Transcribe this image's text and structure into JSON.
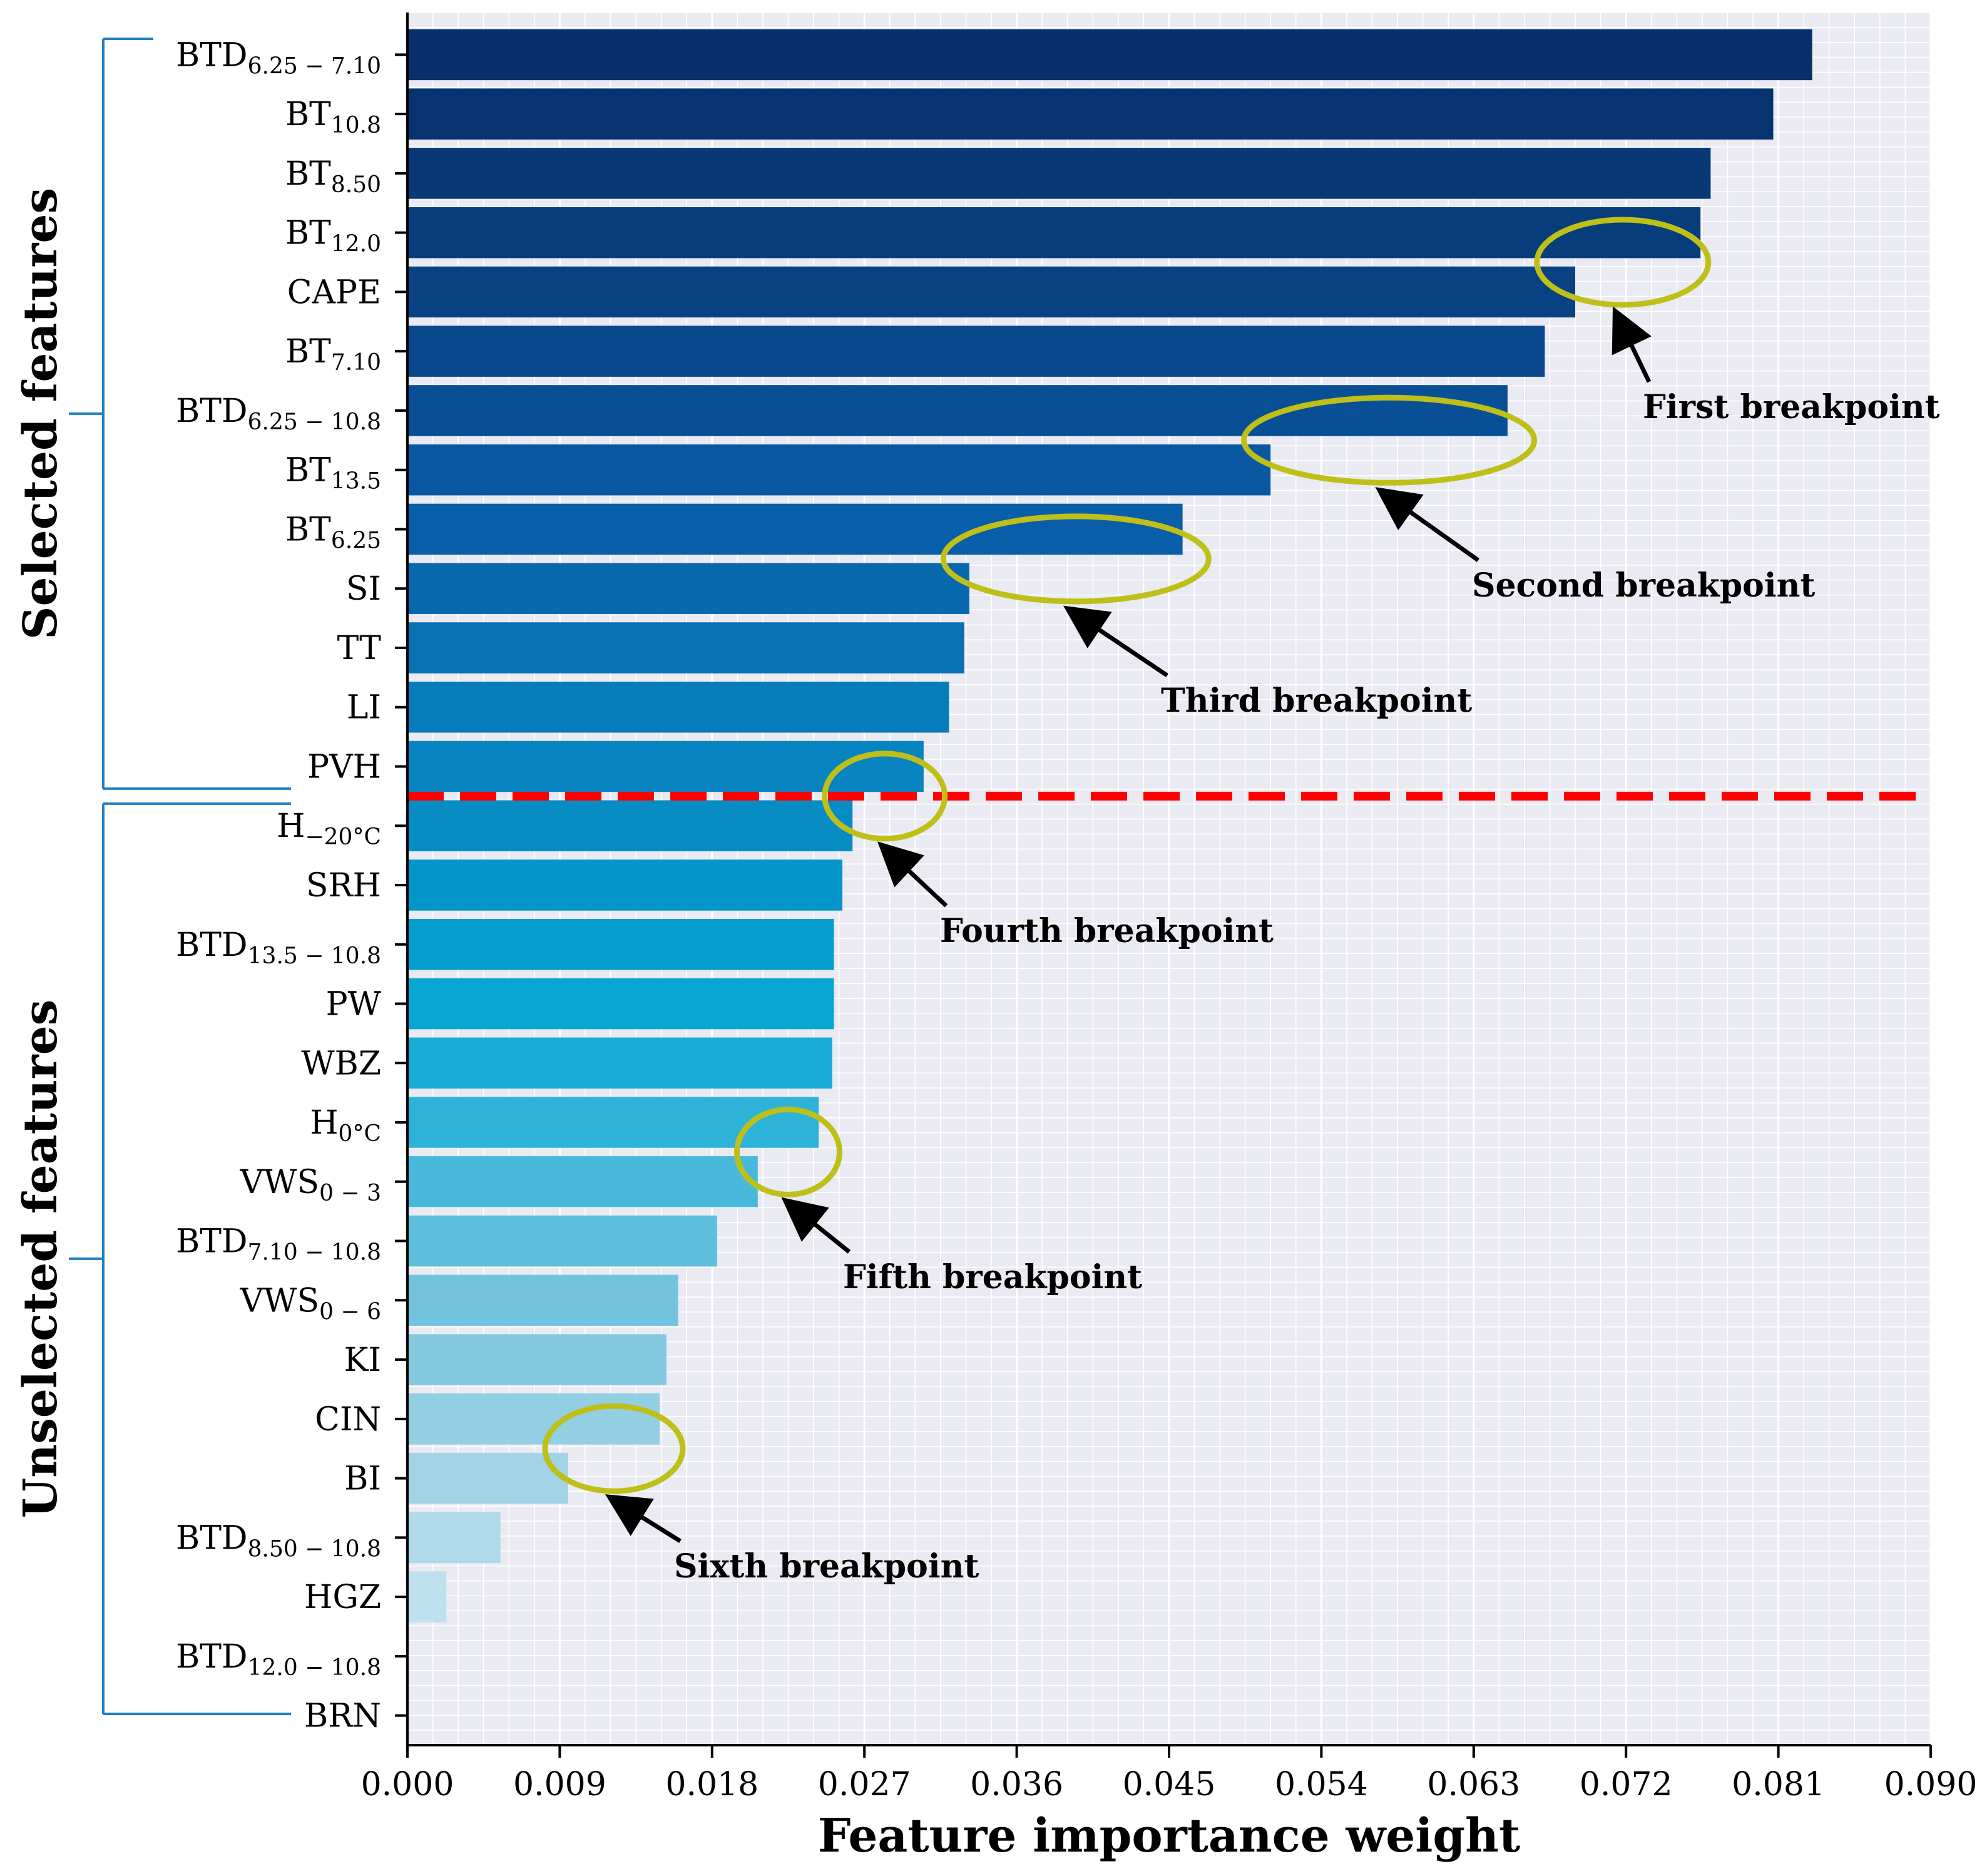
{
  "chart_data": {
    "type": "bar",
    "orientation": "horizontal",
    "xlabel": "Feature importance weight",
    "xlim": [
      0,
      0.09
    ],
    "xticks": [
      "0.000",
      "0.009",
      "0.018",
      "0.027",
      "0.036",
      "0.045",
      "0.054",
      "0.063",
      "0.072",
      "0.081",
      "0.090"
    ],
    "grid": true,
    "categories": [
      {
        "base": "BTD",
        "sub": "6.25 − 7.10",
        "value": 0.083,
        "color": "#08306b"
      },
      {
        "base": "BT",
        "sub": "10.8",
        "value": 0.0807,
        "color": "#083370"
      },
      {
        "base": "BT",
        "sub": "8.50",
        "value": 0.077,
        "color": "#083875"
      },
      {
        "base": "BT",
        "sub": "12.0",
        "value": 0.0764,
        "color": "#083d7c"
      },
      {
        "base": "CAPE",
        "sub": "",
        "value": 0.069,
        "color": "#084283"
      },
      {
        "base": "BT",
        "sub": "7.10",
        "value": 0.0672,
        "color": "#08488c"
      },
      {
        "base": "BTD",
        "sub": "6.25 − 10.8",
        "value": 0.065,
        "color": "#084f96"
      },
      {
        "base": "BT",
        "sub": "13.5",
        "value": 0.051,
        "color": "#0857a0"
      },
      {
        "base": "BT",
        "sub": "6.25",
        "value": 0.0458,
        "color": "#085ea8"
      },
      {
        "base": "SI",
        "sub": "",
        "value": 0.0332,
        "color": "#0868ae"
      },
      {
        "base": "TT",
        "sub": "",
        "value": 0.0329,
        "color": "#0872b4"
      },
      {
        "base": "LI",
        "sub": "",
        "value": 0.032,
        "color": "#087bba"
      },
      {
        "base": "PVH",
        "sub": "",
        "value": 0.0305,
        "color": "#0884c0"
      },
      {
        "base": "H",
        "sub": "−20°C",
        "value": 0.0263,
        "color": "#078dc4"
      },
      {
        "base": "SRH",
        "sub": "",
        "value": 0.0257,
        "color": "#0596c9"
      },
      {
        "base": "BTD",
        "sub": "13.5 − 10.8",
        "value": 0.0252,
        "color": "#049ece"
      },
      {
        "base": "PW",
        "sub": "",
        "value": 0.0252,
        "color": "#0aa6d3"
      },
      {
        "base": "WBZ",
        "sub": "",
        "value": 0.0251,
        "color": "#1aacd6"
      },
      {
        "base": "H",
        "sub": "0°C",
        "value": 0.0243,
        "color": "#2eb3d8"
      },
      {
        "base": "VWS",
        "sub": "0 − 3",
        "value": 0.0207,
        "color": "#48b9da"
      },
      {
        "base": "BTD",
        "sub": "7.10 − 10.8",
        "value": 0.0183,
        "color": "#5fbedc"
      },
      {
        "base": "VWS",
        "sub": "0 − 6",
        "value": 0.016,
        "color": "#74c3de"
      },
      {
        "base": "KI",
        "sub": "",
        "value": 0.0153,
        "color": "#85c9e0"
      },
      {
        "base": "CIN",
        "sub": "",
        "value": 0.0149,
        "color": "#93cfe3"
      },
      {
        "base": "BI",
        "sub": "",
        "value": 0.0095,
        "color": "#a2d4e6"
      },
      {
        "base": "BTD",
        "sub": "8.50 − 10.8",
        "value": 0.0055,
        "color": "#b0daea"
      },
      {
        "base": "HGZ",
        "sub": "",
        "value": 0.0023,
        "color": "#bfe0ee"
      },
      {
        "base": "BTD",
        "sub": "12.0 − 10.8",
        "value": 0.0,
        "color": "#c9e6f1"
      },
      {
        "base": "BRN",
        "sub": "",
        "value": 0.0,
        "color": "#d4ebf4"
      }
    ],
    "groups": [
      {
        "label": "Selected features",
        "from": 0,
        "to": 12
      },
      {
        "label": "Unselected features",
        "from": 13,
        "to": 28
      }
    ],
    "cutoff_after_index": 12,
    "annotations": [
      {
        "text": "First breakpoint",
        "circle_x": 0.0718,
        "circle_row": 3.5
      },
      {
        "text": "Second breakpoint",
        "circle_x": 0.058,
        "circle_row": 6.5
      },
      {
        "text": "Third breakpoint",
        "circle_x": 0.0395,
        "circle_row": 8.5
      },
      {
        "text": "Fourth breakpoint",
        "circle_x": 0.0282,
        "circle_row": 12.5
      },
      {
        "text": "Fifth breakpoint",
        "circle_x": 0.0225,
        "circle_row": 18.5
      },
      {
        "text": "Sixth breakpoint",
        "circle_x": 0.0122,
        "circle_row": 23.5
      }
    ],
    "colors": {
      "background": "#eaeaf2",
      "grid": "#ffffff",
      "cutoff_line": "#ff0000",
      "circle": "#bfbf1a",
      "bracket": "#1f7fc3"
    }
  }
}
